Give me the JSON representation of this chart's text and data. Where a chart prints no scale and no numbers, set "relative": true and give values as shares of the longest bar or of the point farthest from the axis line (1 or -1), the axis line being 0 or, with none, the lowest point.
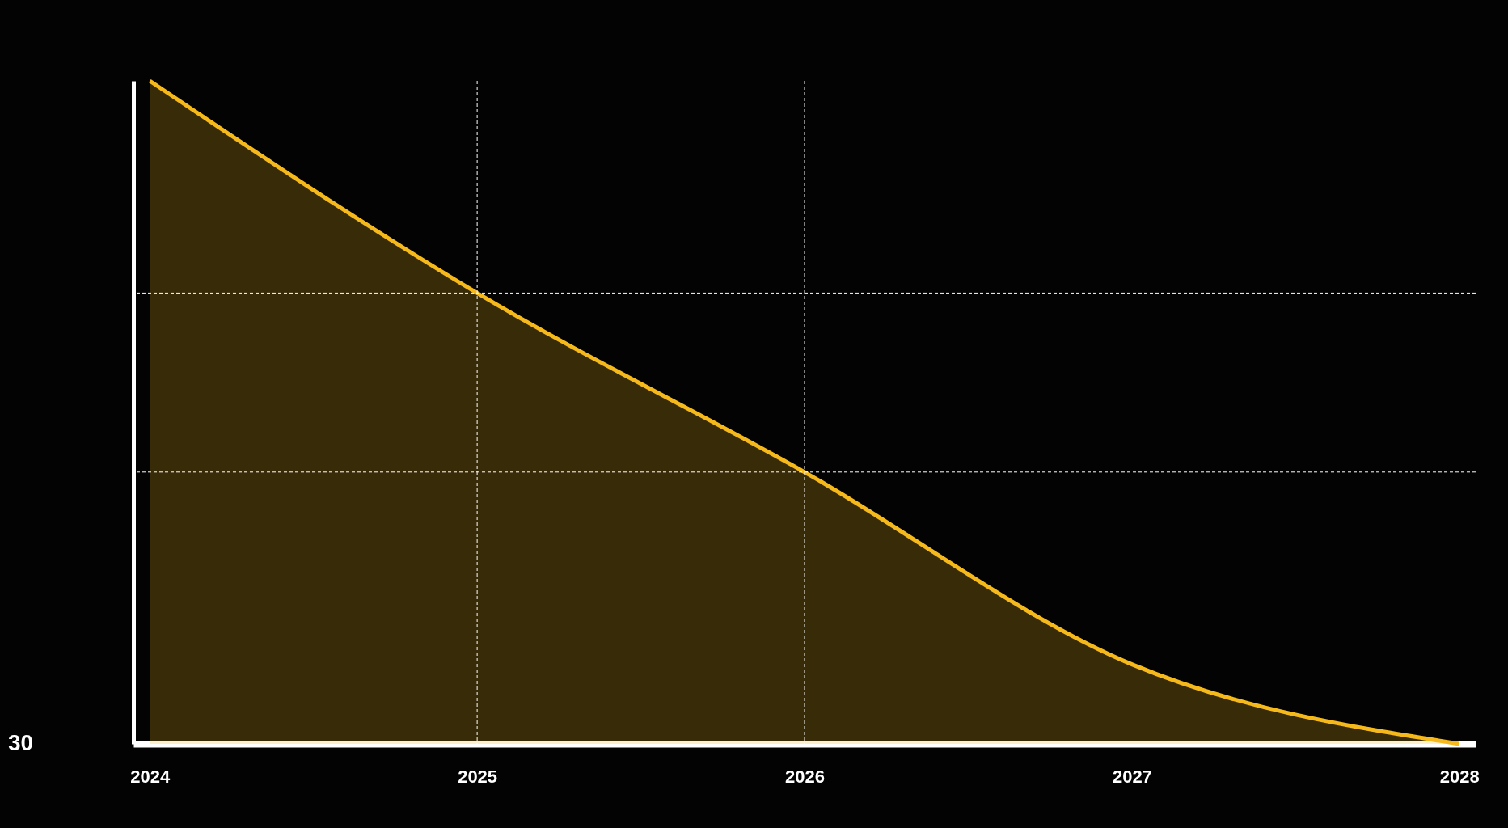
{
  "chart_data": {
    "type": "area",
    "relative": true,
    "categories": [
      "2024",
      "2025",
      "2026",
      "2027",
      "2028"
    ],
    "series": [
      {
        "color": "#f5b91c",
        "values": [
          1,
          0.68,
          0.41,
          0.12,
          0
        ]
      }
    ],
    "ref_lines": [
      {
        "axis": "x",
        "value": "2025",
        "line_style": "dashed",
        "color": "#ffffff"
      },
      {
        "axis": "x",
        "value": "2026",
        "line_style": "dashed",
        "color": "#ffffff"
      },
      {
        "axis": "y",
        "value": 0.68,
        "line_style": "dashed",
        "color": "#ffffff"
      },
      {
        "axis": "y",
        "value": 0.41,
        "line_style": "dashed",
        "color": "#ffffff"
      }
    ],
    "annotations": [
      "30"
    ],
    "grid": false
  }
}
